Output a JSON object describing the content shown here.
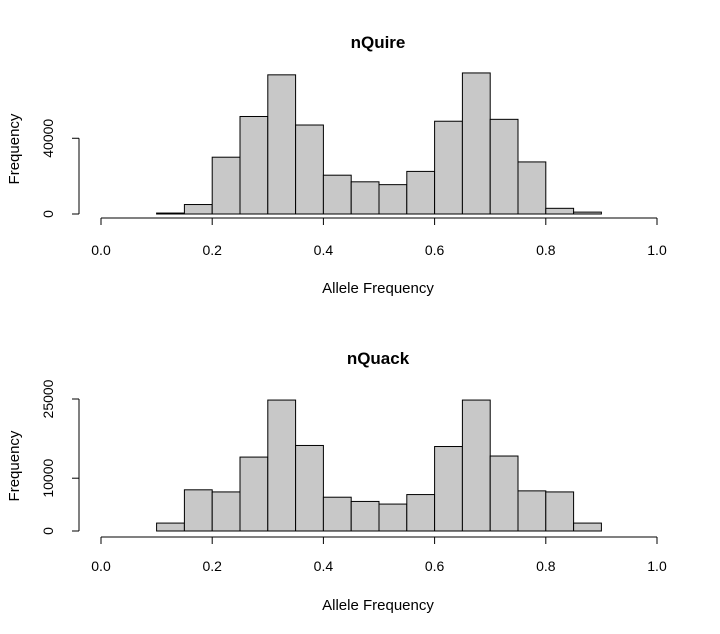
{
  "chart_data": [
    {
      "type": "bar",
      "title": "nQuire",
      "xlabel": "Allele Frequency",
      "ylabel": "Frequency",
      "xlim": [
        0.0,
        1.0
      ],
      "x_ticks": [
        "0.0",
        "0.2",
        "0.4",
        "0.6",
        "0.8",
        "1.0"
      ],
      "y_ticks": [
        "0",
        "40000"
      ],
      "ylim": [
        0,
        75000
      ],
      "bin_width": 0.05,
      "bins": [
        0.1,
        0.15,
        0.2,
        0.25,
        0.3,
        0.35,
        0.4,
        0.45,
        0.5,
        0.55,
        0.6,
        0.65,
        0.7,
        0.75,
        0.8,
        0.85
      ],
      "values": [
        500,
        5000,
        30000,
        51500,
        73500,
        47000,
        20500,
        17000,
        15500,
        22500,
        49000,
        74500,
        50000,
        27500,
        3000,
        1000
      ]
    },
    {
      "type": "bar",
      "title": "nQuack",
      "xlabel": "Allele Frequency",
      "ylabel": "Frequency",
      "xlim": [
        0.0,
        1.0
      ],
      "x_ticks": [
        "0.0",
        "0.2",
        "0.4",
        "0.6",
        "0.8",
        "1.0"
      ],
      "y_ticks": [
        "0",
        "10000",
        "25000"
      ],
      "ylim": [
        0,
        25000
      ],
      "bin_width": 0.05,
      "bins": [
        0.1,
        0.15,
        0.2,
        0.25,
        0.3,
        0.35,
        0.4,
        0.45,
        0.5,
        0.55,
        0.6,
        0.65,
        0.7,
        0.75,
        0.8,
        0.85
      ],
      "values": [
        1500,
        7800,
        7400,
        14000,
        24800,
        16200,
        6400,
        5600,
        5100,
        6900,
        16000,
        24800,
        14200,
        7600,
        7400,
        1500
      ]
    }
  ]
}
